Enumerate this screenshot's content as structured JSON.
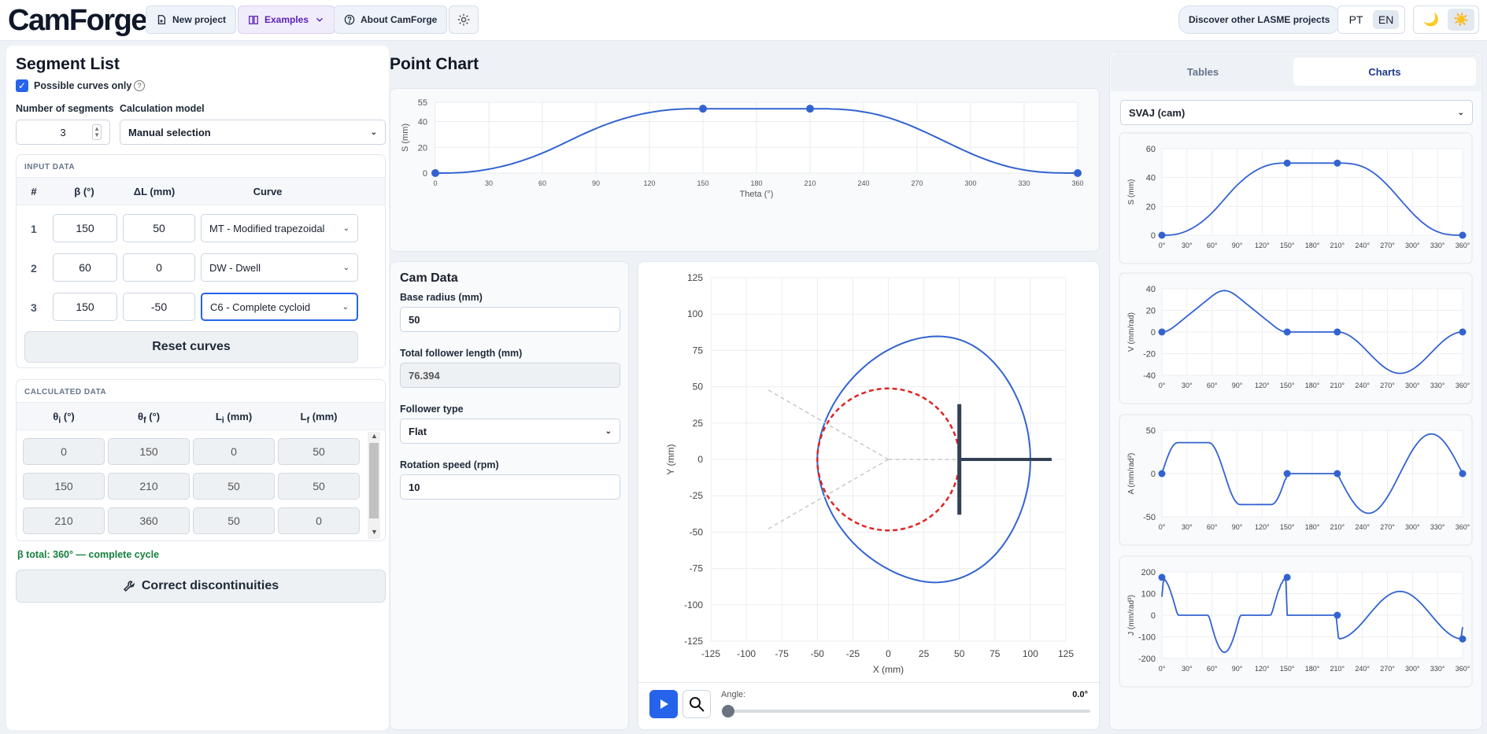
{
  "header": {
    "logo": "CamForge",
    "new_project": "New project",
    "examples": "Examples",
    "about": "About CamForge",
    "discover": "Discover other LASME projects",
    "lang_pt": "PT",
    "lang_en": "EN"
  },
  "segment_list": {
    "title": "Segment List",
    "possible_only": "Possible curves only",
    "num_segments_label": "Number of segments",
    "num_segments": "3",
    "calc_model_label": "Calculation model",
    "calc_model": "Manual selection",
    "input_data_title": "INPUT DATA",
    "input_headers": [
      "#",
      "β (°)",
      "ΔL (mm)",
      "Curve"
    ],
    "rows": [
      {
        "n": "1",
        "beta": "150",
        "dl": "50",
        "curve": "MT - Modified trapezoidal"
      },
      {
        "n": "2",
        "beta": "60",
        "dl": "0",
        "curve": "DW - Dwell"
      },
      {
        "n": "3",
        "beta": "150",
        "dl": "-50",
        "curve": "C6 - Complete cycloid"
      }
    ],
    "reset": "Reset curves",
    "calc_data_title": "CALCULATED DATA",
    "calc_rows": [
      [
        "0",
        "150",
        "0",
        "50"
      ],
      [
        "150",
        "210",
        "50",
        "50"
      ],
      [
        "210",
        "360",
        "50",
        "0"
      ]
    ],
    "beta_total": "β total: 360° — complete cycle",
    "correct": "Correct discontinuities"
  },
  "point_chart": {
    "title": "Point Chart"
  },
  "cam_data": {
    "title": "Cam Data",
    "base_radius_label": "Base radius (mm)",
    "base_radius": "50",
    "follower_len_label": "Total follower length (mm)",
    "follower_len": "76.394",
    "follower_type_label": "Follower type",
    "follower_type": "Flat",
    "speed_label": "Rotation speed (rpm)",
    "speed": "10"
  },
  "anim": {
    "angle_label": "Angle:",
    "angle_value": "0.0°"
  },
  "right": {
    "tab_tables": "Tables",
    "tab_charts": "Charts",
    "chart_select": "SVAJ (cam)"
  },
  "chart_data": [
    {
      "type": "line",
      "xlabel": "Theta (°)",
      "ylabel": "S (mm)",
      "xlim": [
        0,
        360
      ],
      "ylim": [
        0,
        55
      ],
      "xticks": [
        0,
        30,
        60,
        90,
        120,
        150,
        180,
        210,
        240,
        270,
        300,
        330,
        360
      ],
      "yticks": [
        0,
        20,
        40,
        55
      ],
      "markers": [
        [
          0,
          0
        ],
        [
          150,
          50
        ],
        [
          210,
          50
        ],
        [
          360,
          0
        ]
      ]
    },
    {
      "type": "line",
      "xlabel": "X (mm)",
      "ylabel": "Y (mm)",
      "xlim": [
        -125,
        125
      ],
      "ylim": [
        -125,
        125
      ],
      "ticks": [
        -125,
        -100,
        -75,
        -50,
        -25,
        0,
        25,
        50,
        75,
        100,
        125
      ]
    },
    {
      "type": "line",
      "ylabel": "S (mm)",
      "ylim": [
        0,
        60
      ],
      "yticks": [
        0,
        20,
        40,
        60
      ],
      "markers": [
        [
          0,
          0
        ],
        [
          150,
          50
        ],
        [
          210,
          50
        ],
        [
          360,
          0
        ]
      ]
    },
    {
      "type": "line",
      "ylabel": "V (mm/rad)",
      "ylim": [
        -40,
        40
      ],
      "yticks": [
        -40,
        -20,
        0,
        20,
        40
      ],
      "markers": [
        [
          0,
          0
        ],
        [
          150,
          0
        ],
        [
          210,
          0
        ],
        [
          360,
          0
        ]
      ]
    },
    {
      "type": "line",
      "ylabel": "A (mm/rad²)",
      "ylim": [
        -50,
        50
      ],
      "yticks": [
        -50,
        0,
        50
      ],
      "markers": [
        [
          0,
          0
        ],
        [
          150,
          0
        ],
        [
          210,
          0
        ],
        [
          360,
          0
        ]
      ]
    },
    {
      "type": "line",
      "ylabel": "J (mm/rad³)",
      "ylim": [
        -200,
        200
      ],
      "yticks": [
        -200,
        -100,
        0,
        100,
        200
      ],
      "markers": [
        [
          0,
          175
        ],
        [
          150,
          175
        ],
        [
          210,
          0
        ],
        [
          360,
          -110
        ]
      ]
    }
  ],
  "svaj_xticks": [
    "0°",
    "30°",
    "60°",
    "90°",
    "120°",
    "150°",
    "180°",
    "210°",
    "240°",
    "270°",
    "300°",
    "330°",
    "360°"
  ],
  "colors": {
    "accent": "#2563eb",
    "line": "#3363d0",
    "base_circle": "#dc2626"
  }
}
